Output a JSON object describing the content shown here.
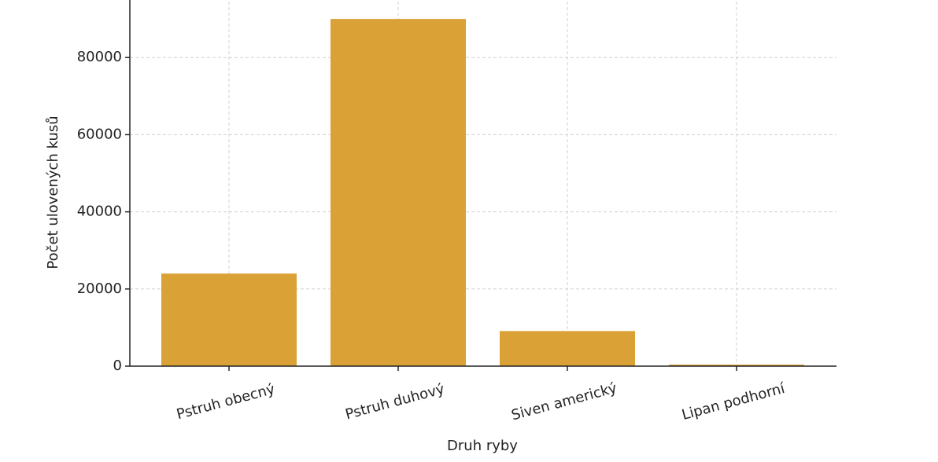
{
  "chart_data": {
    "type": "bar",
    "x_label": "Druh ryby",
    "y_label": "Počet ulovených kusů",
    "categories": [
      "Pstruh obecný",
      "Pstruh duhový",
      "Siven americký",
      "Lipan podhorní"
    ],
    "values": [
      24000,
      90000,
      9100,
      400
    ],
    "color": "#daa137",
    "ylim": [
      0,
      94500
    ],
    "yticks": [
      0,
      20000,
      40000,
      60000,
      80000
    ],
    "grid": true
  }
}
